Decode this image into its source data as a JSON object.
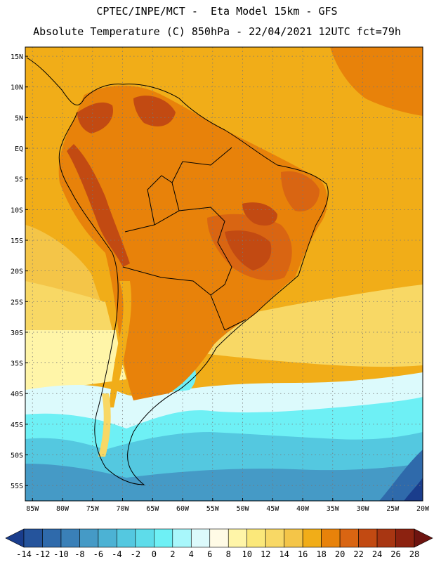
{
  "header": {
    "line1": "CPTEC/INPE/MCT -  Eta Model 15km - GFS",
    "line2": "Absolute Temperature (C) 850hPa - 22/04/2021 12UTC fct=79h"
  },
  "map": {
    "lat_labels": [
      "15N",
      "10N",
      "5N",
      "EQ",
      "5S",
      "10S",
      "15S",
      "20S",
      "25S",
      "30S",
      "35S",
      "40S",
      "45S",
      "50S",
      "55S"
    ],
    "lon_labels": [
      "85W",
      "80W",
      "75W",
      "70W",
      "65W",
      "60W",
      "55W",
      "50W",
      "45W",
      "40W",
      "35W",
      "30W",
      "25W",
      "20W"
    ],
    "lat_values": [
      15,
      10,
      5,
      0,
      -5,
      -10,
      -15,
      -20,
      -25,
      -30,
      -35,
      -40,
      -45,
      -50,
      -55
    ],
    "lon_values": [
      -85,
      -80,
      -75,
      -70,
      -65,
      -60,
      -55,
      -50,
      -45,
      -40,
      -35,
      -30,
      -25,
      -20
    ],
    "lat_range": [
      -57.5,
      16.5
    ],
    "lon_range": [
      -86.2,
      -20
    ]
  },
  "colorbar": {
    "labels": [
      "-14",
      "-12",
      "-10",
      "-8",
      "-6",
      "-4",
      "-2",
      "0",
      "2",
      "4",
      "6",
      "8",
      "10",
      "12",
      "14",
      "16",
      "18",
      "20",
      "22",
      "24",
      "26",
      "28"
    ],
    "colors": [
      "#1a3d8c",
      "#25549c",
      "#2f6aab",
      "#3a80b8",
      "#459ac6",
      "#4cb2d4",
      "#54c8e0",
      "#5edcea",
      "#6ef0f5",
      "#a8f7fb",
      "#dcfafc",
      "#fffbe6",
      "#fff5a8",
      "#fbe87a",
      "#f8d865",
      "#f4c548",
      "#f1ad18",
      "#e8820a",
      "#d96512",
      "#c24a12",
      "#a83612",
      "#8c2210",
      "#6e1410"
    ]
  }
}
